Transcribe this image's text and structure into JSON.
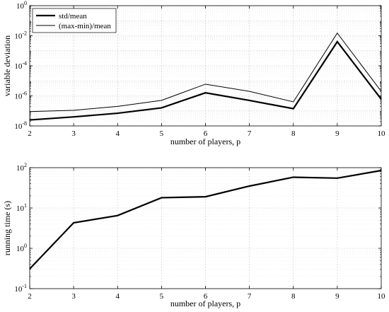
{
  "chart_data": [
    {
      "type": "line",
      "yscale": "log",
      "xlabel": "number of players, p",
      "ylabel": "variable deviation",
      "xlim": [
        2,
        10
      ],
      "ylim": [
        1e-08,
        1
      ],
      "x": [
        2,
        3,
        4,
        5,
        6,
        7,
        8,
        9,
        10
      ],
      "xticks": [
        "2",
        "3",
        "4",
        "5",
        "6",
        "7",
        "8",
        "9",
        "10"
      ],
      "yticks": [
        {
          "value": 1e-08,
          "base": "10",
          "exp": "-8"
        },
        {
          "value": 1e-06,
          "base": "10",
          "exp": "-6"
        },
        {
          "value": 0.0001,
          "base": "10",
          "exp": "-4"
        },
        {
          "value": 0.01,
          "base": "10",
          "exp": "-2"
        },
        {
          "value": 1,
          "base": "10",
          "exp": "0"
        }
      ],
      "grid": true,
      "legend_position": "top-left",
      "series": [
        {
          "name": "std/mean",
          "style": "thick",
          "values": [
            2.5e-08,
            4e-08,
            7e-08,
            1.6e-07,
            1.6e-06,
            5e-07,
            1.4e-07,
            0.004,
            6e-07
          ]
        },
        {
          "name": "(max-min)/mean",
          "style": "thin",
          "values": [
            9e-08,
            1.1e-07,
            2e-07,
            5e-07,
            6e-06,
            2e-06,
            4e-07,
            0.015,
            2e-06
          ]
        }
      ]
    },
    {
      "type": "line",
      "yscale": "log",
      "xlabel": "number of players, p",
      "ylabel": "running time (s)",
      "xlim": [
        2,
        10
      ],
      "ylim": [
        0.1,
        100
      ],
      "x": [
        2,
        3,
        4,
        5,
        6,
        7,
        8,
        9,
        10
      ],
      "xticks": [
        "2",
        "3",
        "4",
        "5",
        "6",
        "7",
        "8",
        "9",
        "10"
      ],
      "yticks": [
        {
          "value": 0.1,
          "base": "10",
          "exp": "-1"
        },
        {
          "value": 1,
          "base": "10",
          "exp": "0"
        },
        {
          "value": 10,
          "base": "10",
          "exp": "1"
        },
        {
          "value": 100,
          "base": "10",
          "exp": "2"
        }
      ],
      "grid": true,
      "series": [
        {
          "style": "thick",
          "values": [
            0.31,
            4.3,
            6.5,
            18,
            19,
            35,
            58,
            55,
            85
          ]
        }
      ]
    }
  ]
}
